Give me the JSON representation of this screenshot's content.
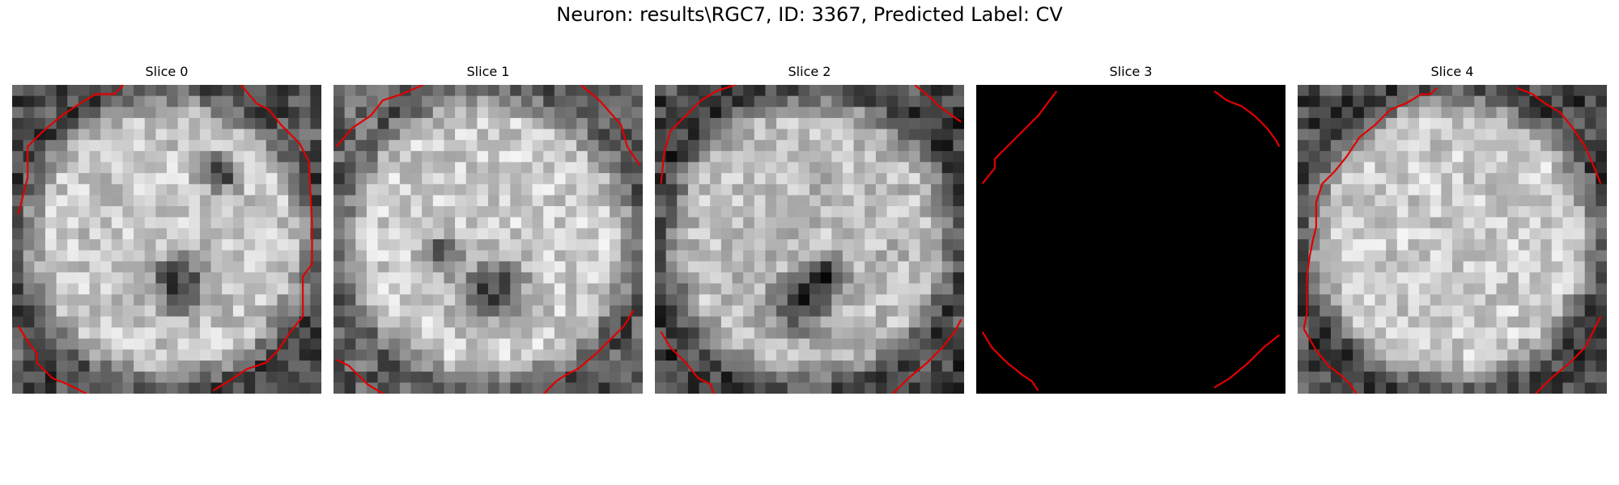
{
  "figure": {
    "title": "Neuron: results\\RGC7, ID: 3367, Predicted Label: CV"
  },
  "panels": [
    {
      "title": "Slice 0"
    },
    {
      "title": "Slice 1"
    },
    {
      "title": "Slice 2"
    },
    {
      "title": "Slice 3"
    },
    {
      "title": "Slice 4"
    }
  ],
  "colors": {
    "contour": "#e00000",
    "background": "#ffffff",
    "blank_slice": "#000000"
  }
}
